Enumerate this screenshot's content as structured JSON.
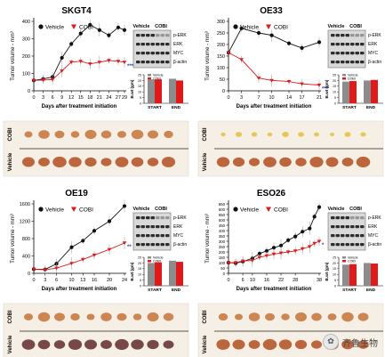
{
  "chart_data": [
    {
      "type": "line",
      "title": "SKGT4",
      "xlabel": "Days after treatment initiation",
      "ylabel": "Tumor volume - mm³",
      "x": [
        0,
        3,
        6,
        9,
        12,
        15,
        18,
        21,
        24,
        27,
        29
      ],
      "xticks": [
        0,
        3,
        6,
        9,
        12,
        15,
        18,
        21,
        24,
        27,
        29
      ],
      "xlim": [
        0,
        29
      ],
      "ylim": [
        0,
        400
      ],
      "yticks": [
        0,
        100,
        200,
        300,
        400
      ],
      "series": [
        {
          "name": "Vehicle",
          "values": [
            60,
            68,
            80,
            190,
            270,
            330,
            380,
            350,
            320,
            365,
            350
          ]
        },
        {
          "name": "COBI",
          "values": [
            60,
            62,
            65,
            115,
            165,
            170,
            155,
            165,
            175,
            170,
            165
          ]
        }
      ],
      "significance": "***",
      "blot": {
        "columns": [
          "Vehicle",
          "COBI"
        ],
        "bands": [
          "p-ERK",
          "ERK",
          "MYC",
          "β-actin"
        ]
      },
      "bar": {
        "ylabel": "B.wt (gm)",
        "ylim": [
          0,
          25
        ],
        "yticks": [
          0,
          5,
          10,
          15,
          20,
          25
        ],
        "categories": [
          "START",
          "END"
        ],
        "legend": [
          "Vehicle",
          "COBI"
        ],
        "vehicle": [
          21,
          21.5
        ],
        "cobi": [
          21,
          20
        ]
      }
    },
    {
      "type": "line",
      "title": "OE33",
      "xlabel": "Days after treatment initiation",
      "ylabel": "Tumor volume - mm³",
      "x": [
        0,
        3,
        7,
        10,
        14,
        17,
        21
      ],
      "xticks": [
        0,
        3,
        7,
        10,
        14,
        17,
        21
      ],
      "xlim": [
        0,
        21
      ],
      "ylim": [
        0,
        300
      ],
      "yticks": [
        0,
        50,
        100,
        150,
        200,
        250,
        300
      ],
      "series": [
        {
          "name": "Vehicle",
          "values": [
            165,
            270,
            250,
            240,
            205,
            185,
            210
          ]
        },
        {
          "name": "COBI",
          "values": [
            165,
            135,
            55,
            45,
            40,
            30,
            25
          ]
        }
      ],
      "significance": "***",
      "blot": {
        "columns": [
          "Vehicle",
          "COBI"
        ],
        "bands": [
          "p-ERK",
          "ERK",
          "MYC",
          "β-actin"
        ]
      },
      "bar": {
        "ylabel": "B.wt (gm)",
        "ylim": [
          0,
          25
        ],
        "yticks": [
          0,
          5,
          10,
          15,
          20,
          25
        ],
        "categories": [
          "START",
          "END"
        ],
        "legend": [
          "Vehicle",
          "COBI"
        ],
        "vehicle": [
          19,
          20
        ],
        "cobi": [
          19.5,
          20.5
        ]
      }
    },
    {
      "type": "line",
      "title": "OE19",
      "xlabel": "Days after treatment initiation",
      "ylabel": "Tumor volume - mm³",
      "x": [
        0,
        3,
        6,
        10,
        13,
        16,
        20,
        24
      ],
      "xticks": [
        0,
        3,
        6,
        10,
        13,
        16,
        20,
        24
      ],
      "xlim": [
        0,
        24
      ],
      "ylim": [
        0,
        1600
      ],
      "yticks": [
        0,
        400,
        800,
        1200,
        1600
      ],
      "series": [
        {
          "name": "Vehicle",
          "values": [
            95,
            90,
            220,
            600,
            750,
            980,
            1200,
            1550
          ]
        },
        {
          "name": "COBI",
          "values": [
            95,
            80,
            120,
            230,
            320,
            420,
            550,
            700
          ]
        }
      ],
      "significance": "**",
      "blot": {
        "columns": [
          "Vehicle",
          "COBI"
        ],
        "bands": [
          "p-ERK",
          "ERK",
          "MYC",
          "β-actin"
        ]
      },
      "bar": {
        "ylabel": "B.wt (gm)",
        "ylim": [
          0,
          25
        ],
        "yticks": [
          0,
          5,
          10,
          15,
          20,
          25
        ],
        "categories": [
          "START",
          "END"
        ],
        "legend": [
          "Vehicle",
          "COBI"
        ],
        "vehicle": [
          20,
          22
        ],
        "cobi": [
          20.5,
          21
        ]
      }
    },
    {
      "type": "line",
      "title": "ESO26",
      "xlabel": "Days after treatment initiation",
      "ylabel": "Tumor volume - mm³",
      "x": [
        0,
        3,
        6,
        10,
        13,
        16,
        19,
        22,
        25,
        28,
        31,
        34,
        36,
        38
      ],
      "xticks": [
        0,
        6,
        10,
        16,
        22,
        28,
        38
      ],
      "xlim": [
        0,
        38
      ],
      "ylim": [
        0,
        650
      ],
      "yticks": [
        0,
        50,
        100,
        150,
        200,
        250,
        300,
        350,
        400,
        450,
        500,
        550,
        600,
        650
      ],
      "series": [
        {
          "name": "Vehicle",
          "values": [
            100,
            95,
            110,
            140,
            185,
            210,
            240,
            260,
            310,
            345,
            390,
            420,
            530,
            620
          ]
        },
        {
          "name": "COBI",
          "values": [
            100,
            100,
            115,
            120,
            150,
            165,
            180,
            190,
            200,
            210,
            230,
            250,
            280,
            300
          ]
        }
      ],
      "significance": "*",
      "blot": {
        "columns": [
          "Vehicle",
          "COBI"
        ],
        "bands": [
          "p-ERK",
          "ERK",
          "MYC",
          "β-actin"
        ]
      },
      "bar": {
        "ylabel": "B.wt (gm)",
        "ylim": [
          0,
          25
        ],
        "yticks": [
          0,
          5,
          10,
          15,
          20,
          25
        ],
        "categories": [
          "START",
          "END"
        ],
        "legend": [
          "Vehicle",
          "COBI"
        ],
        "vehicle": [
          18.5,
          20
        ],
        "cobi": [
          19,
          19.5
        ]
      }
    }
  ],
  "tumor_photos": {
    "row_labels": [
      "COBI",
      "Vehicle"
    ]
  },
  "watermark": {
    "text": "齐鲁生物",
    "icon": "wechat-icon"
  },
  "colors": {
    "vehicle": "#111111",
    "cobi": "#e01a1a",
    "sig": "#2a3fd0",
    "bar_vehicle": "#8c8c8c",
    "bar_cobi": "#e01a1a"
  }
}
